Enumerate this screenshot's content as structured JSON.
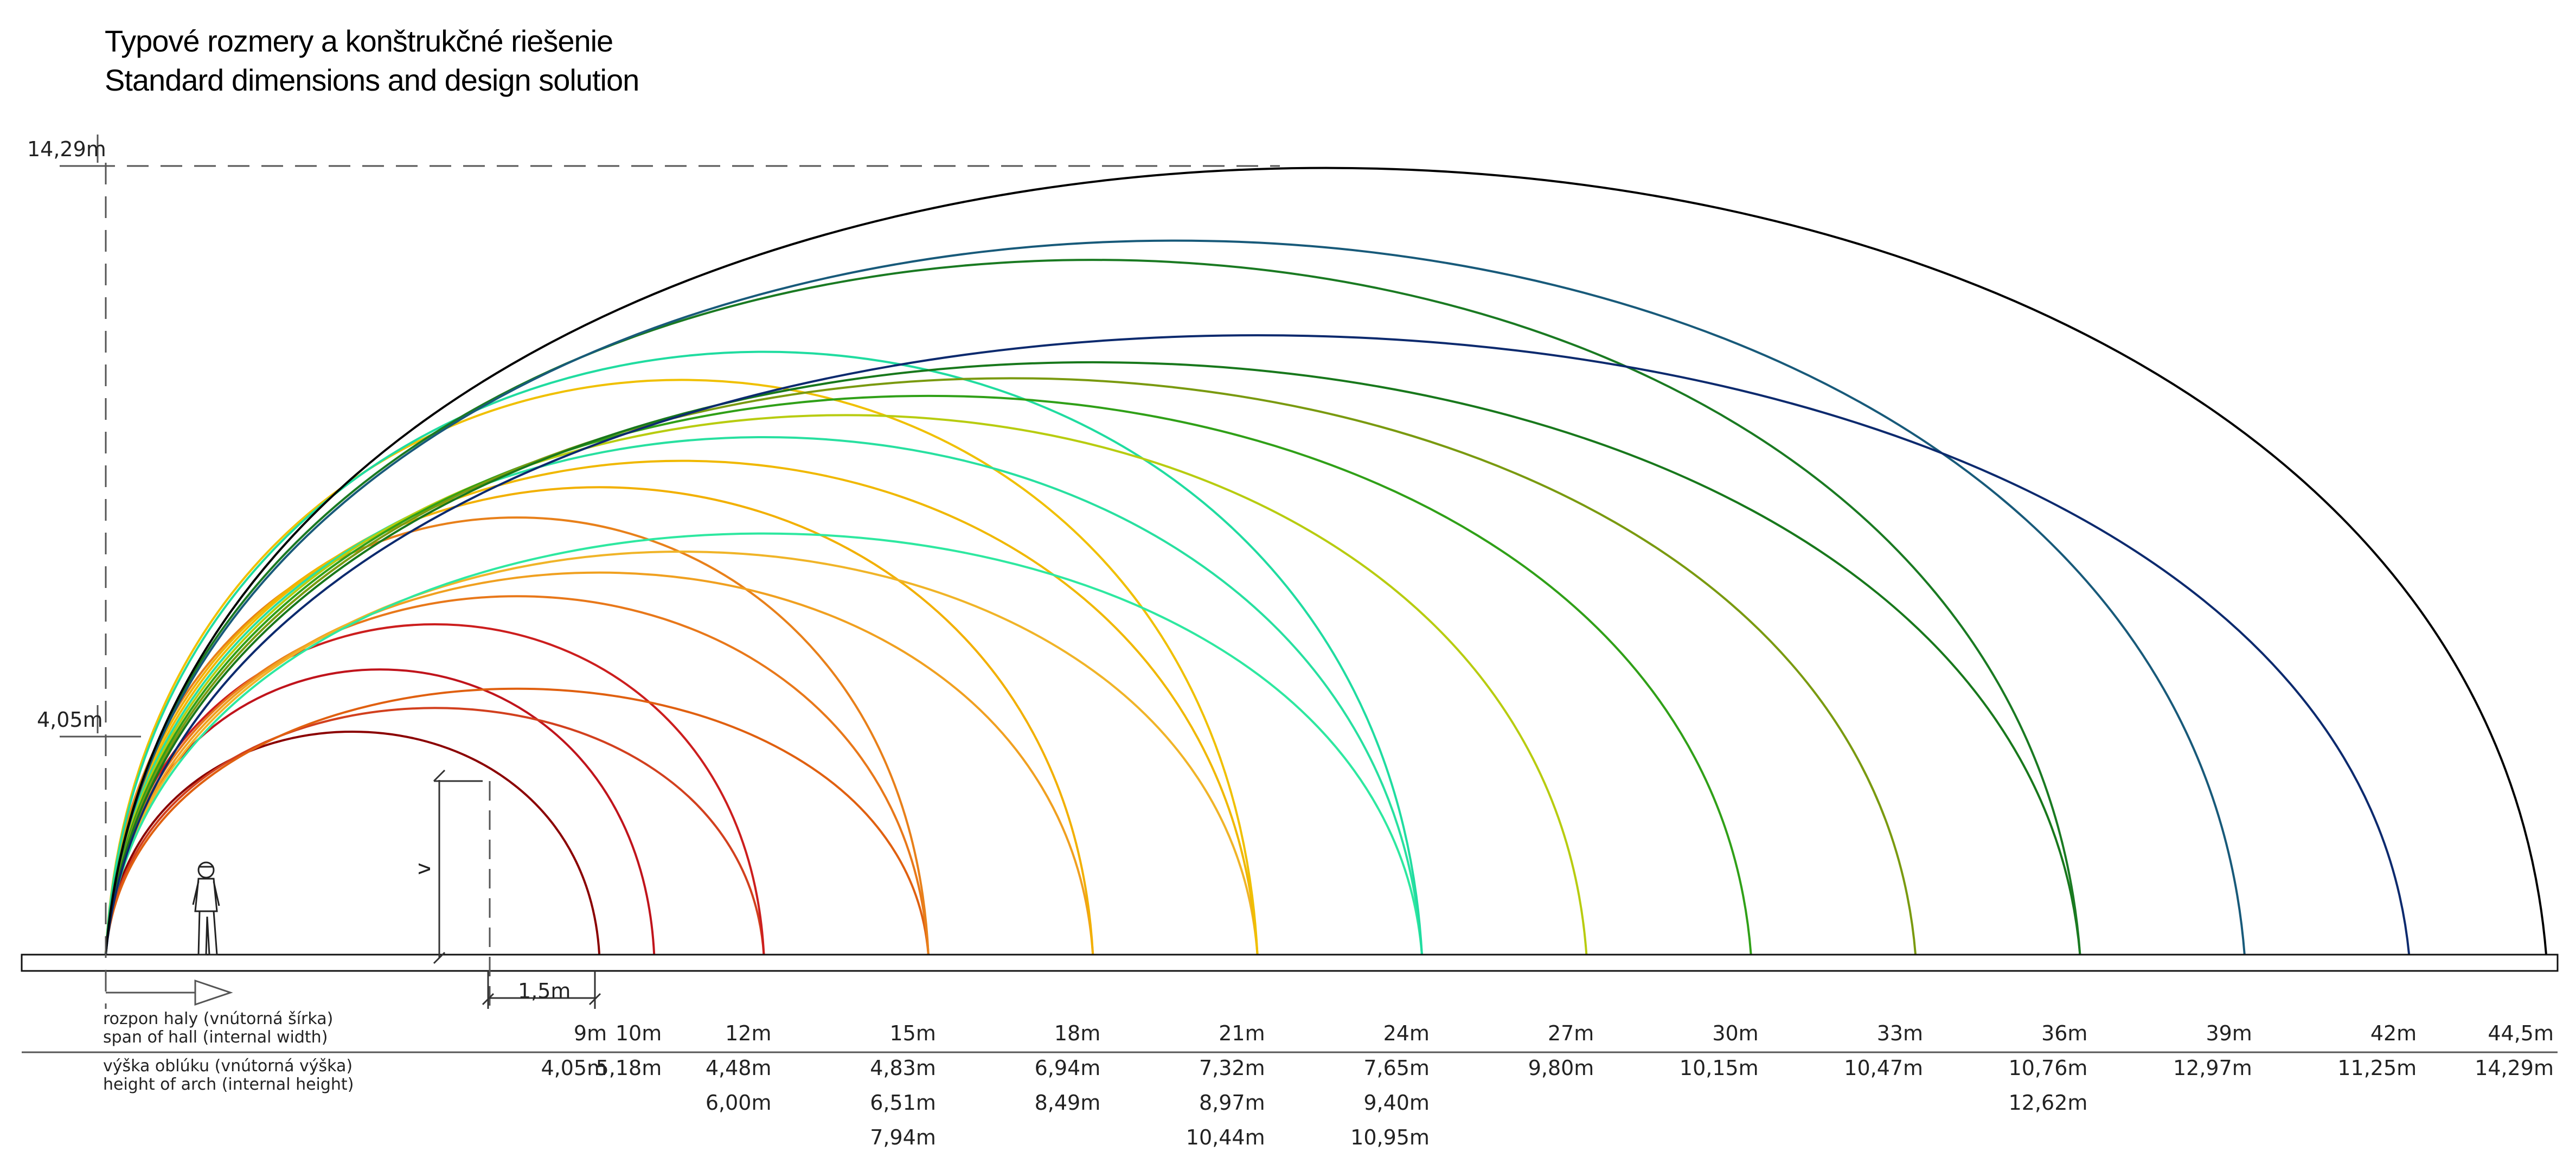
{
  "title": {
    "line1": "Typové rozmery a konštrukčné riešenie",
    "line2": "Standard dimensions and design solution"
  },
  "max_height_marker": "14,29m",
  "min_height_marker": "4,05m",
  "dimension": {
    "v_label": "v",
    "offset_label": "1,5m"
  },
  "legend": {
    "span_sk": "rozpon haly (vnútorná šírka)",
    "span_en": "span of hall (internal width)",
    "height_sk": "výška oblúku (vnútorná výška)",
    "height_en": "height of arch (internal height)"
  },
  "chart_data": {
    "type": "table",
    "columns": [
      {
        "span": "9m",
        "span_m": 9,
        "heights": [
          "4,05m"
        ],
        "heights_m": [
          4.05
        ],
        "colors": [
          "#8b0000"
        ]
      },
      {
        "span": "10m",
        "span_m": 10,
        "heights": [
          "5,18m"
        ],
        "heights_m": [
          5.18
        ],
        "colors": [
          "#c0141c"
        ]
      },
      {
        "span": "12m",
        "span_m": 12,
        "heights": [
          "4,48m",
          "6,00m"
        ],
        "heights_m": [
          4.48,
          6.0
        ],
        "colors": [
          "#d2401e",
          "#cc1e1e"
        ]
      },
      {
        "span": "15m",
        "span_m": 15,
        "heights": [
          "4,83m",
          "6,51m",
          "7,94m"
        ],
        "heights_m": [
          4.83,
          6.51,
          7.94
        ],
        "colors": [
          "#e06010",
          "#e8781a",
          "#e8801a"
        ]
      },
      {
        "span": "18m",
        "span_m": 18,
        "heights": [
          "6,94m",
          "8,49m"
        ],
        "heights_m": [
          6.94,
          8.49
        ],
        "colors": [
          "#f0a020",
          "#f2b000"
        ]
      },
      {
        "span": "21m",
        "span_m": 21,
        "heights": [
          "7,32m",
          "8,97m",
          "10,44m"
        ],
        "heights_m": [
          7.32,
          8.97,
          10.44
        ],
        "colors": [
          "#f0b428",
          "#f0b800",
          "#f0c000"
        ]
      },
      {
        "span": "24m",
        "span_m": 24,
        "heights": [
          "7,65m",
          "9,40m",
          "10,95m"
        ],
        "heights_m": [
          7.65,
          9.4,
          10.95
        ],
        "colors": [
          "#2ee8a0",
          "#28e0a0",
          "#20dca0"
        ]
      },
      {
        "span": "27m",
        "span_m": 27,
        "heights": [
          "9,80m"
        ],
        "heights_m": [
          9.8
        ],
        "colors": [
          "#b8cc10"
        ]
      },
      {
        "span": "30m",
        "span_m": 30,
        "heights": [
          "10,15m"
        ],
        "heights_m": [
          10.15
        ],
        "colors": [
          "#30a018"
        ]
      },
      {
        "span": "33m",
        "span_m": 33,
        "heights": [
          "10,47m"
        ],
        "heights_m": [
          10.47
        ],
        "colors": [
          "#7a9a10"
        ]
      },
      {
        "span": "36m",
        "span_m": 36,
        "heights": [
          "10,76m",
          "12,62m"
        ],
        "heights_m": [
          10.76,
          12.62
        ],
        "colors": [
          "#18781c",
          "#1a7a22"
        ]
      },
      {
        "span": "39m",
        "span_m": 39,
        "heights": [
          "12,97m"
        ],
        "heights_m": [
          12.97
        ],
        "colors": [
          "#185a7a"
        ]
      },
      {
        "span": "42m",
        "span_m": 42,
        "heights": [
          "11,25m"
        ],
        "heights_m": [
          11.25
        ],
        "colors": [
          "#0c2a6e"
        ]
      },
      {
        "span": "44,5m",
        "span_m": 44.5,
        "heights": [
          "14,29m"
        ],
        "heights_m": [
          14.29
        ],
        "colors": [
          "#000000"
        ]
      }
    ]
  }
}
